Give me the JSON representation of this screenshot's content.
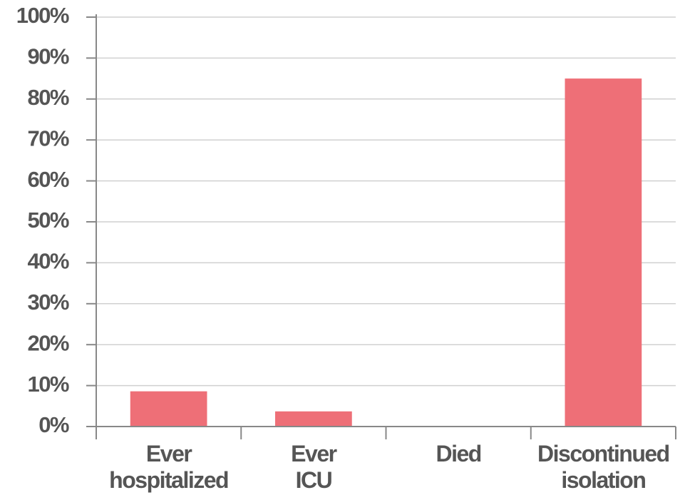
{
  "chart_data": {
    "type": "bar",
    "categories": [
      "Ever hospitalized",
      "Ever ICU",
      "Died",
      "Discontinued isolation"
    ],
    "values": [
      8.6,
      3.7,
      0,
      85
    ],
    "color": "#ee6f77",
    "ylim": [
      0,
      100
    ],
    "yticks": [
      {
        "value": 0,
        "label": "0%"
      },
      {
        "value": 10,
        "label": "10%"
      },
      {
        "value": 20,
        "label": "20%"
      },
      {
        "value": 30,
        "label": "30%"
      },
      {
        "value": 40,
        "label": "40%"
      },
      {
        "value": 50,
        "label": "50%"
      },
      {
        "value": 60,
        "label": "60%"
      },
      {
        "value": 70,
        "label": "70%"
      },
      {
        "value": 80,
        "label": "80%"
      },
      {
        "value": 90,
        "label": "90%"
      },
      {
        "value": 100,
        "label": "100%"
      }
    ],
    "grid": true
  }
}
